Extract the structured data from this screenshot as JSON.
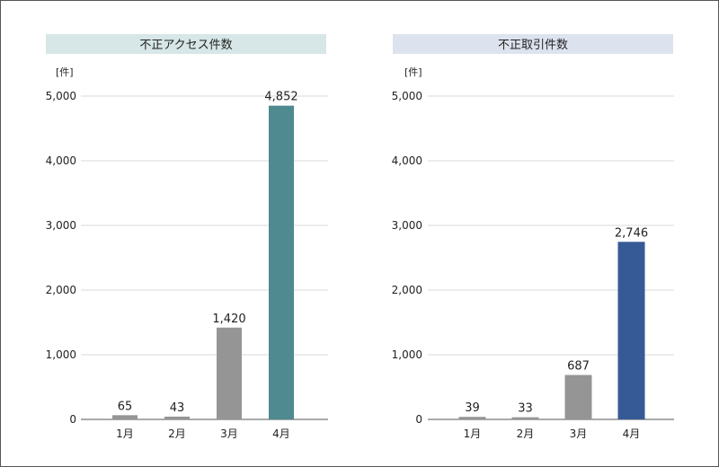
{
  "chart_data": [
    {
      "type": "bar",
      "title": "不正アクセス件数",
      "unit": "[件]",
      "categories": [
        "1月",
        "2月",
        "3月",
        "4月"
      ],
      "values": [
        65,
        43,
        1420,
        4852
      ],
      "value_labels": [
        "65",
        "43",
        "1,420",
        "4,852"
      ],
      "ylim": [
        0,
        5000
      ],
      "yticks": [
        "0",
        "1,000",
        "2,000",
        "3,000",
        "4,000",
        "5,000"
      ],
      "grid": true,
      "title_bg": "#d7e6e6",
      "bar_colors": [
        "#959595",
        "#959595",
        "#959595",
        "#4e8a8f"
      ]
    },
    {
      "type": "bar",
      "title": "不正取引件数",
      "unit": "[件]",
      "categories": [
        "1月",
        "2月",
        "3月",
        "4月"
      ],
      "values": [
        39,
        33,
        687,
        2746
      ],
      "value_labels": [
        "39",
        "33",
        "687",
        "2,746"
      ],
      "ylim": [
        0,
        5000
      ],
      "yticks": [
        "0",
        "1,000",
        "2,000",
        "3,000",
        "4,000",
        "5,000"
      ],
      "grid": true,
      "title_bg": "#dce3ee",
      "bar_colors": [
        "#959595",
        "#959595",
        "#959595",
        "#365a96"
      ]
    }
  ]
}
